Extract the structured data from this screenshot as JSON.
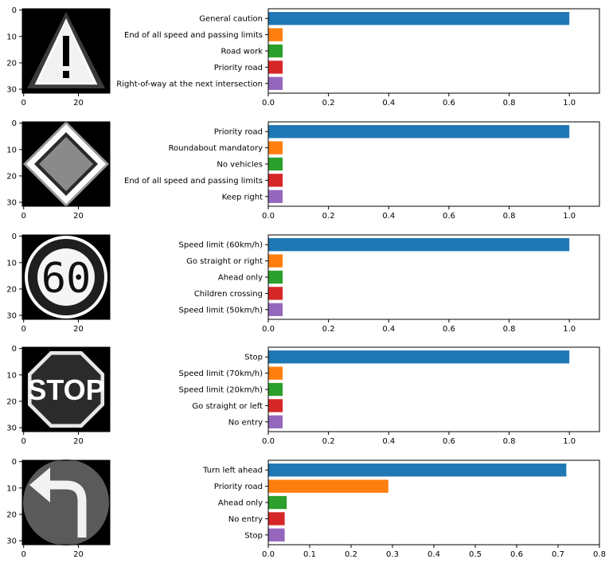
{
  "chart_data": [
    {
      "type": "bar",
      "orientation": "horizontal",
      "image": {
        "icon": "general-caution-sign",
        "xticks": [
          "0",
          "20"
        ],
        "yticks": [
          "0",
          "10",
          "20",
          "30"
        ]
      },
      "categories": [
        "General caution",
        "End of all speed and passing limits",
        "Road work",
        "Priority road",
        "Right-of-way at the next intersection"
      ],
      "values": [
        1.0,
        0.0,
        0.0,
        0.0,
        0.0
      ],
      "xlim": [
        0,
        1.1
      ],
      "xticks": [
        "0.0",
        "0.2",
        "0.4",
        "0.6",
        "0.8",
        "1.0"
      ]
    },
    {
      "type": "bar",
      "orientation": "horizontal",
      "image": {
        "icon": "priority-road-sign",
        "xticks": [
          "0",
          "20"
        ],
        "yticks": [
          "0",
          "10",
          "20",
          "30"
        ]
      },
      "categories": [
        "Priority road",
        "Roundabout mandatory",
        "No vehicles",
        "End of all speed and passing limits",
        "Keep right"
      ],
      "values": [
        1.0,
        0.0,
        0.0,
        0.0,
        0.0
      ],
      "xlim": [
        0,
        1.1
      ],
      "xticks": [
        "0.0",
        "0.2",
        "0.4",
        "0.6",
        "0.8",
        "1.0"
      ]
    },
    {
      "type": "bar",
      "orientation": "horizontal",
      "image": {
        "icon": "speed-limit-60-sign",
        "xticks": [
          "0",
          "20"
        ],
        "yticks": [
          "0",
          "10",
          "20",
          "30"
        ]
      },
      "categories": [
        "Speed limit (60km/h)",
        "Go straight or right",
        "Ahead only",
        "Children crossing",
        "Speed limit (50km/h)"
      ],
      "values": [
        1.0,
        0.0,
        0.0,
        0.0,
        0.0
      ],
      "xlim": [
        0,
        1.1
      ],
      "xticks": [
        "0.0",
        "0.2",
        "0.4",
        "0.6",
        "0.8",
        "1.0"
      ]
    },
    {
      "type": "bar",
      "orientation": "horizontal",
      "image": {
        "icon": "stop-sign",
        "xticks": [
          "0",
          "20"
        ],
        "yticks": [
          "0",
          "10",
          "20",
          "30"
        ]
      },
      "categories": [
        "Stop",
        "Speed limit (70km/h)",
        "Speed limit (20km/h)",
        "Go straight or left",
        "No entry"
      ],
      "values": [
        1.0,
        0.0,
        0.0,
        0.0,
        0.0
      ],
      "xlim": [
        0,
        1.1
      ],
      "xticks": [
        "0.0",
        "0.2",
        "0.4",
        "0.6",
        "0.8",
        "1.0"
      ]
    },
    {
      "type": "bar",
      "orientation": "horizontal",
      "image": {
        "icon": "turn-left-ahead-sign",
        "xticks": [
          "0",
          "20"
        ],
        "yticks": [
          "0",
          "10",
          "20",
          "30"
        ]
      },
      "categories": [
        "Turn left ahead",
        "Priority road",
        "Ahead only",
        "No entry",
        "Stop"
      ],
      "values": [
        0.72,
        0.29,
        0.01,
        0.005,
        0.005
      ],
      "xlim": [
        0,
        0.8
      ],
      "xticks": [
        "0.0",
        "0.1",
        "0.2",
        "0.3",
        "0.4",
        "0.5",
        "0.6",
        "0.7",
        "0.8"
      ]
    }
  ],
  "colors": {
    "bars": [
      "#1f77b4",
      "#ff7f0e",
      "#2ca02c",
      "#d62728",
      "#9467bd"
    ],
    "gray": "#808080"
  }
}
